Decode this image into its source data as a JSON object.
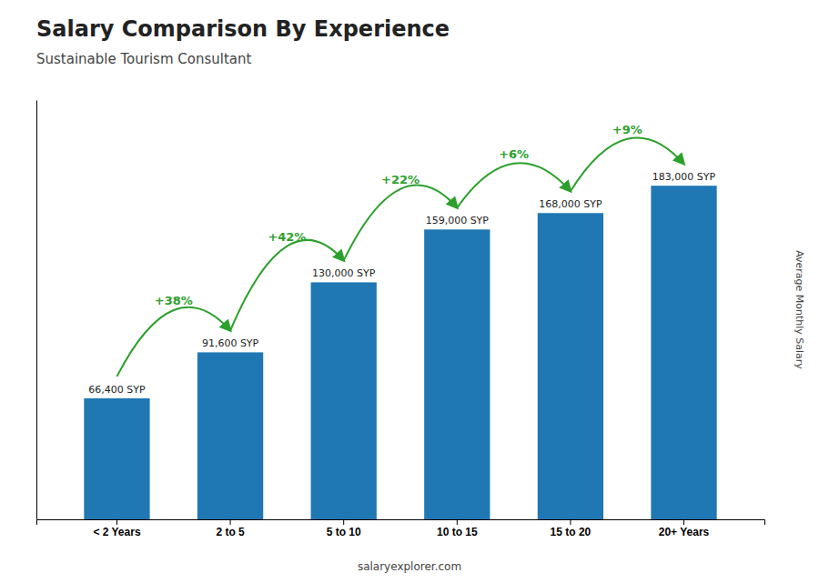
{
  "chart_data": {
    "type": "bar",
    "title": "Salary Comparison By Experience",
    "subtitle": "Sustainable Tourism Consultant",
    "categories": [
      "< 2 Years",
      "2 to 5",
      "5 to 10",
      "10 to 15",
      "15 to 20",
      "20+ Years"
    ],
    "values": [
      66400,
      91600,
      130000,
      159000,
      168000,
      183000
    ],
    "value_labels": [
      "66,400 SYP",
      "91,600 SYP",
      "130,000 SYP",
      "159,000 SYP",
      "168,000 SYP",
      "183,000 SYP"
    ],
    "data_labels": true,
    "annotations": [
      null,
      "+38%",
      "+42%",
      "+22%",
      "+6%",
      "+9%"
    ],
    "ylabel": "Average Monthly Salary",
    "footer": "salaryexplorer.com",
    "ylim": [
      0,
      230000
    ],
    "tick_labels": "x"
  }
}
